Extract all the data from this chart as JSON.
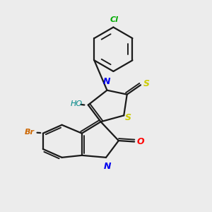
{
  "background_color": "#ececec",
  "bond_color": "#1a1a1a",
  "atom_colors": {
    "N": "#0000ee",
    "O": "#ff0000",
    "S": "#cccc00",
    "Cl": "#00aa00",
    "Br": "#cc6600",
    "HO": "#008888"
  },
  "lw": 1.6
}
